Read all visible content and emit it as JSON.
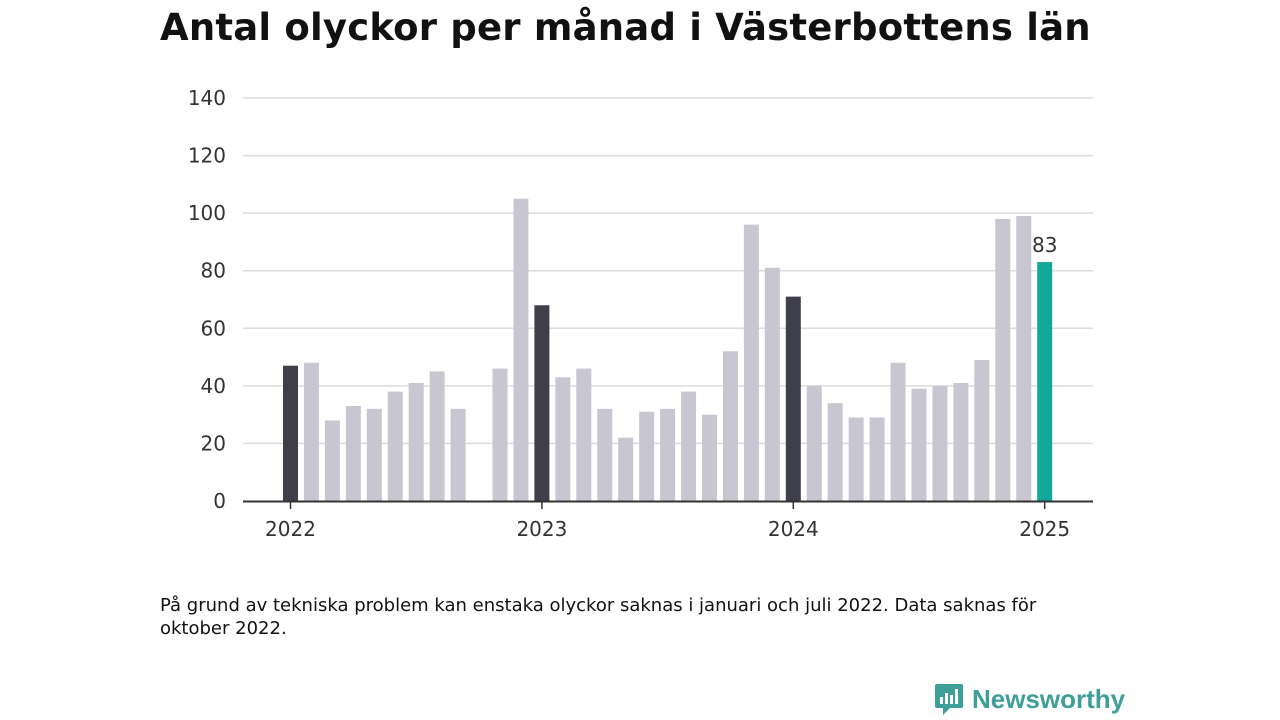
{
  "title": "Antal olyckor per månad i Västerbottens län",
  "footnote": "På grund av tekniska problem kan enstaka olyckor saknas i januari och juli 2022. Data saknas för oktober 2022.",
  "logo_text": "Newsworthy",
  "colors": {
    "bar_default": "#c8c6d0",
    "bar_january": "#3f3e4b",
    "bar_latest": "#12a89a",
    "grid": "#dcdcdc",
    "axis": "#333333",
    "logo": "#3e9e99"
  },
  "chart_data": {
    "type": "bar",
    "title": "Antal olyckor per månad i Västerbottens län",
    "ylim": [
      0,
      140
    ],
    "yticks": [
      "0",
      "20",
      "40",
      "60",
      "80",
      "100",
      "120",
      "140"
    ],
    "xticks": [
      "2022",
      "2023",
      "2024",
      "2025"
    ],
    "grid": true,
    "annotation": "83",
    "months": [
      "2022-01",
      "2022-02",
      "2022-03",
      "2022-04",
      "2022-05",
      "2022-06",
      "2022-07",
      "2022-08",
      "2022-09",
      "2022-10",
      "2022-11",
      "2022-12",
      "2023-01",
      "2023-02",
      "2023-03",
      "2023-04",
      "2023-05",
      "2023-06",
      "2023-07",
      "2023-08",
      "2023-09",
      "2023-10",
      "2023-11",
      "2023-12",
      "2024-01",
      "2024-02",
      "2024-03",
      "2024-04",
      "2024-05",
      "2024-06",
      "2024-07",
      "2024-08",
      "2024-09",
      "2024-10",
      "2024-11",
      "2024-12",
      "2025-01"
    ],
    "values": [
      47,
      48,
      28,
      33,
      32,
      38,
      41,
      45,
      32,
      null,
      46,
      105,
      68,
      43,
      46,
      32,
      22,
      31,
      32,
      38,
      30,
      52,
      96,
      81,
      71,
      40,
      34,
      29,
      29,
      48,
      39,
      40,
      41,
      49,
      98,
      99,
      83
    ]
  }
}
